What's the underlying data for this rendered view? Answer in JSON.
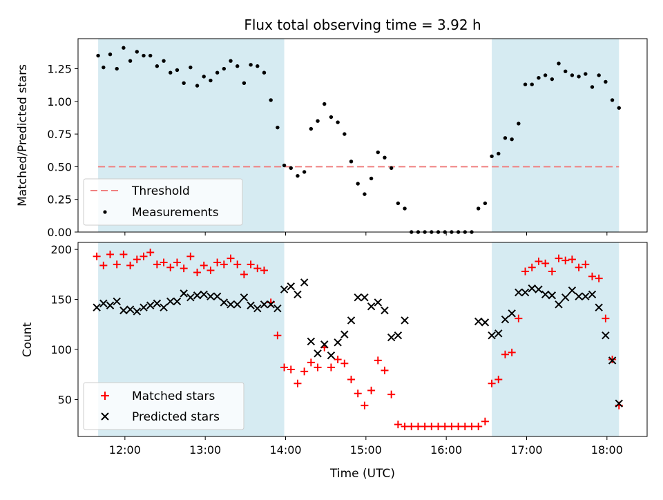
{
  "chart_data": [
    {
      "type": "scatter",
      "title": "Flux total observing time = 3.92 h",
      "xlabel": "",
      "ylabel": "Matched/Predicted stars",
      "xlim": [
        "11:25",
        "18:30"
      ],
      "ylim": [
        0,
        1.48
      ],
      "yticks": [
        "0.00",
        "0.25",
        "0.50",
        "0.75",
        "1.00",
        "1.25"
      ],
      "observing_windows": [
        [
          "11:40",
          "13:59"
        ],
        [
          "16:34",
          "18:09"
        ]
      ],
      "window_color": "#add8e6",
      "threshold": 0.5,
      "threshold_color": "#f08080",
      "legend_position": "lower left",
      "legend": [
        "Threshold",
        "Measurements"
      ],
      "series": [
        {
          "name": "Measurements",
          "marker": "dot",
          "color": "#000000",
          "points": [
            [
              "11:40",
              1.35
            ],
            [
              "11:44",
              1.26
            ],
            [
              "11:49",
              1.36
            ],
            [
              "11:54",
              1.25
            ],
            [
              "11:59",
              1.41
            ],
            [
              "12:04",
              1.31
            ],
            [
              "12:09",
              1.38
            ],
            [
              "12:14",
              1.35
            ],
            [
              "12:19",
              1.35
            ],
            [
              "12:24",
              1.27
            ],
            [
              "12:29",
              1.31
            ],
            [
              "12:34",
              1.22
            ],
            [
              "12:39",
              1.24
            ],
            [
              "12:44",
              1.14
            ],
            [
              "12:49",
              1.26
            ],
            [
              "12:54",
              1.12
            ],
            [
              "12:59",
              1.19
            ],
            [
              "13:04",
              1.16
            ],
            [
              "13:09",
              1.22
            ],
            [
              "13:14",
              1.25
            ],
            [
              "13:19",
              1.31
            ],
            [
              "13:24",
              1.27
            ],
            [
              "13:29",
              1.14
            ],
            [
              "13:34",
              1.28
            ],
            [
              "13:39",
              1.27
            ],
            [
              "13:44",
              1.22
            ],
            [
              "13:49",
              1.01
            ],
            [
              "13:54",
              0.8
            ],
            [
              "13:59",
              0.51
            ],
            [
              "14:04",
              0.49
            ],
            [
              "14:09",
              0.43
            ],
            [
              "14:14",
              0.46
            ],
            [
              "14:19",
              0.79
            ],
            [
              "14:24",
              0.85
            ],
            [
              "14:29",
              0.98
            ],
            [
              "14:34",
              0.88
            ],
            [
              "14:39",
              0.84
            ],
            [
              "14:44",
              0.75
            ],
            [
              "14:49",
              0.54
            ],
            [
              "14:54",
              0.37
            ],
            [
              "14:59",
              0.29
            ],
            [
              "15:04",
              0.41
            ],
            [
              "15:09",
              0.61
            ],
            [
              "15:14",
              0.57
            ],
            [
              "15:19",
              0.49
            ],
            [
              "15:24",
              0.22
            ],
            [
              "15:29",
              0.18
            ],
            [
              "15:34",
              0.0
            ],
            [
              "15:39",
              0.0
            ],
            [
              "15:44",
              0.0
            ],
            [
              "15:49",
              0.0
            ],
            [
              "15:54",
              0.0
            ],
            [
              "15:59",
              0.0
            ],
            [
              "16:04",
              0.0
            ],
            [
              "16:09",
              0.0
            ],
            [
              "16:14",
              0.0
            ],
            [
              "16:19",
              0.0
            ],
            [
              "16:24",
              0.18
            ],
            [
              "16:29",
              0.22
            ],
            [
              "16:34",
              0.58
            ],
            [
              "16:39",
              0.6
            ],
            [
              "16:44",
              0.72
            ],
            [
              "16:49",
              0.71
            ],
            [
              "16:54",
              0.83
            ],
            [
              "16:59",
              1.13
            ],
            [
              "17:04",
              1.13
            ],
            [
              "17:09",
              1.18
            ],
            [
              "17:14",
              1.2
            ],
            [
              "17:19",
              1.17
            ],
            [
              "17:24",
              1.29
            ],
            [
              "17:29",
              1.23
            ],
            [
              "17:34",
              1.2
            ],
            [
              "17:39",
              1.19
            ],
            [
              "17:44",
              1.21
            ],
            [
              "17:49",
              1.11
            ],
            [
              "17:54",
              1.2
            ],
            [
              "17:59",
              1.15
            ],
            [
              "18:04",
              1.01
            ],
            [
              "18:09",
              0.95
            ]
          ]
        }
      ]
    },
    {
      "type": "scatter",
      "title": "",
      "xlabel": "Time (UTC)",
      "ylabel": "Count",
      "xlim": [
        "11:25",
        "18:30"
      ],
      "ylim": [
        13,
        207
      ],
      "yticks": [
        "50",
        "100",
        "150",
        "200"
      ],
      "xticks": [
        "12:00",
        "13:00",
        "14:00",
        "15:00",
        "16:00",
        "17:00",
        "18:00"
      ],
      "observing_windows": [
        [
          "11:40",
          "13:59"
        ],
        [
          "16:34",
          "18:09"
        ]
      ],
      "window_color": "#add8e6",
      "legend_position": "lower left",
      "legend": [
        "Matched stars",
        "Predicted stars"
      ],
      "series": [
        {
          "name": "Matched stars",
          "marker": "plus",
          "color": "#ff0000",
          "points": [
            [
              "11:39",
              193
            ],
            [
              "11:44",
              184
            ],
            [
              "11:49",
              195
            ],
            [
              "11:54",
              185
            ],
            [
              "11:59",
              195
            ],
            [
              "12:04",
              184
            ],
            [
              "12:09",
              190
            ],
            [
              "12:14",
              193
            ],
            [
              "12:19",
              197
            ],
            [
              "12:24",
              185
            ],
            [
              "12:29",
              187
            ],
            [
              "12:34",
              182
            ],
            [
              "12:39",
              187
            ],
            [
              "12:44",
              181
            ],
            [
              "12:49",
              193
            ],
            [
              "12:54",
              177
            ],
            [
              "12:59",
              184
            ],
            [
              "13:04",
              179
            ],
            [
              "13:09",
              187
            ],
            [
              "13:14",
              185
            ],
            [
              "13:19",
              191
            ],
            [
              "13:24",
              185
            ],
            [
              "13:29",
              175
            ],
            [
              "13:34",
              185
            ],
            [
              "13:39",
              181
            ],
            [
              "13:44",
              179
            ],
            [
              "13:49",
              147
            ],
            [
              "13:54",
              114
            ],
            [
              "13:59",
              82
            ],
            [
              "14:04",
              80
            ],
            [
              "14:09",
              66
            ],
            [
              "14:14",
              78
            ],
            [
              "14:19",
              87
            ],
            [
              "14:24",
              82
            ],
            [
              "14:29",
              102
            ],
            [
              "14:34",
              82
            ],
            [
              "14:39",
              90
            ],
            [
              "14:44",
              86
            ],
            [
              "14:49",
              70
            ],
            [
              "14:54",
              56
            ],
            [
              "14:59",
              44
            ],
            [
              "15:04",
              59
            ],
            [
              "15:09",
              89
            ],
            [
              "15:14",
              79
            ],
            [
              "15:19",
              55
            ],
            [
              "15:24",
              25
            ],
            [
              "15:29",
              23
            ],
            [
              "15:34",
              23
            ],
            [
              "15:39",
              23
            ],
            [
              "15:44",
              23
            ],
            [
              "15:49",
              23
            ],
            [
              "15:54",
              23
            ],
            [
              "15:59",
              23
            ],
            [
              "16:04",
              23
            ],
            [
              "16:09",
              23
            ],
            [
              "16:14",
              23
            ],
            [
              "16:19",
              23
            ],
            [
              "16:24",
              23
            ],
            [
              "16:29",
              28
            ],
            [
              "16:34",
              66
            ],
            [
              "16:39",
              70
            ],
            [
              "16:44",
              95
            ],
            [
              "16:49",
              97
            ],
            [
              "16:54",
              131
            ],
            [
              "16:59",
              178
            ],
            [
              "17:04",
              182
            ],
            [
              "17:09",
              188
            ],
            [
              "17:14",
              186
            ],
            [
              "17:19",
              178
            ],
            [
              "17:24",
              191
            ],
            [
              "17:29",
              189
            ],
            [
              "17:34",
              190
            ],
            [
              "17:39",
              182
            ],
            [
              "17:44",
              185
            ],
            [
              "17:49",
              173
            ],
            [
              "17:54",
              171
            ],
            [
              "17:59",
              131
            ],
            [
              "18:04",
              90
            ],
            [
              "18:09",
              44
            ]
          ]
        },
        {
          "name": "Predicted stars",
          "marker": "x",
          "color": "#000000",
          "points": [
            [
              "11:39",
              142
            ],
            [
              "11:44",
              146
            ],
            [
              "11:49",
              144
            ],
            [
              "11:54",
              148
            ],
            [
              "11:59",
              139
            ],
            [
              "12:04",
              140
            ],
            [
              "12:09",
              138
            ],
            [
              "12:14",
              142
            ],
            [
              "12:19",
              144
            ],
            [
              "12:24",
              146
            ],
            [
              "12:29",
              142
            ],
            [
              "12:34",
              148
            ],
            [
              "12:39",
              148
            ],
            [
              "12:44",
              156
            ],
            [
              "12:49",
              152
            ],
            [
              "12:54",
              154
            ],
            [
              "12:59",
              155
            ],
            [
              "13:04",
              153
            ],
            [
              "13:09",
              153
            ],
            [
              "13:14",
              147
            ],
            [
              "13:19",
              145
            ],
            [
              "13:24",
              145
            ],
            [
              "13:29",
              152
            ],
            [
              "13:34",
              144
            ],
            [
              "13:39",
              141
            ],
            [
              "13:44",
              145
            ],
            [
              "13:49",
              145
            ],
            [
              "13:54",
              141
            ],
            [
              "13:59",
              160
            ],
            [
              "14:04",
              163
            ],
            [
              "14:09",
              155
            ],
            [
              "14:14",
              167
            ],
            [
              "14:19",
              108
            ],
            [
              "14:24",
              96
            ],
            [
              "14:29",
              105
            ],
            [
              "14:34",
              94
            ],
            [
              "14:39",
              107
            ],
            [
              "14:44",
              115
            ],
            [
              "14:49",
              129
            ],
            [
              "14:54",
              152
            ],
            [
              "14:59",
              152
            ],
            [
              "15:04",
              143
            ],
            [
              "15:09",
              147
            ],
            [
              "15:14",
              139
            ],
            [
              "15:19",
              112
            ],
            [
              "15:24",
              114
            ],
            [
              "15:29",
              129
            ],
            [
              "16:24",
              128
            ],
            [
              "16:29",
              127
            ],
            [
              "16:34",
              114
            ],
            [
              "16:39",
              116
            ],
            [
              "16:44",
              130
            ],
            [
              "16:49",
              136
            ],
            [
              "16:54",
              157
            ],
            [
              "16:59",
              157
            ],
            [
              "17:04",
              161
            ],
            [
              "17:09",
              160
            ],
            [
              "17:14",
              155
            ],
            [
              "17:19",
              154
            ],
            [
              "17:24",
              145
            ],
            [
              "17:29",
              152
            ],
            [
              "17:34",
              159
            ],
            [
              "17:39",
              153
            ],
            [
              "17:44",
              153
            ],
            [
              "17:49",
              155
            ],
            [
              "17:54",
              142
            ],
            [
              "17:59",
              114
            ],
            [
              "18:04",
              89
            ],
            [
              "18:09",
              46
            ]
          ]
        }
      ]
    }
  ]
}
